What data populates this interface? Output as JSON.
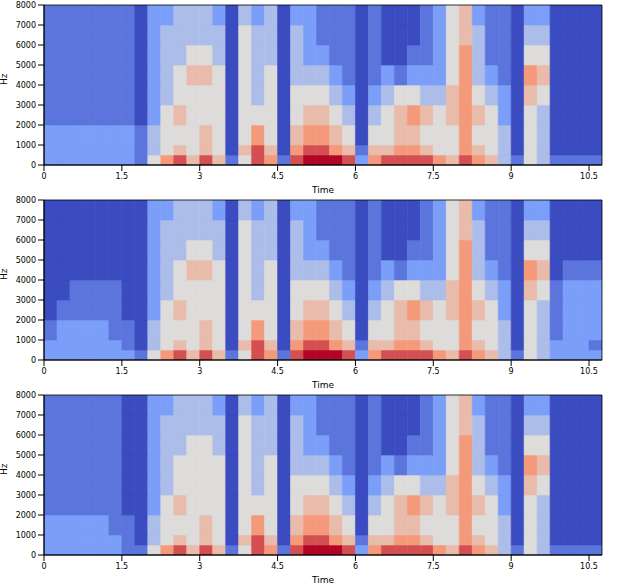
{
  "chart_data": [
    {
      "type": "heatmap",
      "xlabel": "Time",
      "ylabel": "Hz",
      "xlim": [
        0,
        10.75
      ],
      "ylim": [
        0,
        8000
      ],
      "xticks": [
        0,
        1.5,
        3,
        4.5,
        6,
        7.5,
        9,
        10.5
      ],
      "yticks": [
        0,
        1000,
        2000,
        3000,
        4000,
        5000,
        6000,
        7000,
        8000
      ],
      "x_edges": [
        0,
        0.25,
        0.5,
        0.75,
        1,
        1.25,
        1.5,
        1.75,
        2,
        2.25,
        2.5,
        2.75,
        3,
        3.25,
        3.5,
        3.75,
        4,
        4.25,
        4.5,
        4.75,
        5,
        5.25,
        5.5,
        5.75,
        6,
        6.25,
        6.5,
        6.75,
        7,
        7.25,
        7.5,
        7.75,
        8,
        8.25,
        8.5,
        8.75,
        9,
        9.25,
        9.5,
        9.75,
        10,
        10.25,
        10.5,
        10.75
      ],
      "y_edges": [
        0,
        500,
        1000,
        2000,
        3000,
        4000,
        5000,
        6000,
        7000,
        8000
      ],
      "cells": [
        [
          3,
          3,
          3,
          3,
          3,
          3,
          3,
          2,
          5,
          7,
          8,
          6,
          8,
          6,
          2,
          5,
          8,
          7,
          2,
          8,
          9,
          9,
          9,
          8,
          3,
          7,
          8,
          8,
          8,
          8,
          7,
          6,
          8,
          7,
          6,
          4,
          2,
          5,
          4,
          2,
          2,
          2,
          2
        ],
        [
          3,
          3,
          3,
          3,
          3,
          3,
          3,
          2,
          4,
          5,
          6,
          5,
          6,
          5,
          1,
          6,
          8,
          6,
          1,
          7,
          8,
          8,
          7,
          6,
          2,
          6,
          6,
          7,
          7,
          6,
          5,
          5,
          7,
          6,
          5,
          4,
          1,
          5,
          4,
          1,
          1,
          1,
          1
        ],
        [
          3,
          3,
          3,
          3,
          3,
          3,
          3,
          2,
          4,
          5,
          5,
          5,
          6,
          5,
          1,
          5,
          7,
          5,
          1,
          6,
          7,
          7,
          6,
          5,
          1,
          5,
          5,
          6,
          6,
          5,
          5,
          5,
          7,
          5,
          5,
          4,
          1,
          5,
          4,
          1,
          1,
          1,
          1
        ],
        [
          2,
          2,
          2,
          2,
          2,
          2,
          2,
          1,
          3,
          5,
          6,
          5,
          5,
          5,
          1,
          5,
          5,
          5,
          1,
          5,
          6,
          6,
          5,
          4,
          1,
          4,
          5,
          6,
          7,
          6,
          5,
          6,
          7,
          6,
          5,
          3,
          1,
          5,
          4,
          1,
          1,
          1,
          1
        ],
        [
          2,
          2,
          2,
          2,
          2,
          2,
          2,
          1,
          3,
          4,
          5,
          5,
          5,
          5,
          1,
          5,
          4,
          5,
          1,
          5,
          5,
          5,
          4,
          3,
          1,
          3,
          4,
          5,
          5,
          4,
          4,
          6,
          7,
          5,
          4,
          3,
          1,
          6,
          5,
          1,
          1,
          1,
          1
        ],
        [
          2,
          2,
          2,
          2,
          2,
          2,
          2,
          1,
          3,
          4,
          5,
          6,
          6,
          5,
          1,
          5,
          4,
          5,
          1,
          4,
          4,
          4,
          3,
          2,
          1,
          2,
          3,
          2,
          3,
          3,
          3,
          5,
          7,
          4,
          3,
          2,
          1,
          7,
          6,
          1,
          1,
          1,
          1
        ],
        [
          2,
          2,
          2,
          2,
          2,
          2,
          2,
          1,
          3,
          4,
          4,
          5,
          5,
          4,
          1,
          5,
          4,
          4,
          1,
          4,
          3,
          3,
          2,
          2,
          1,
          2,
          1,
          1,
          2,
          2,
          3,
          5,
          7,
          4,
          2,
          2,
          1,
          5,
          5,
          1,
          1,
          1,
          1
        ],
        [
          2,
          2,
          2,
          2,
          2,
          2,
          2,
          1,
          3,
          4,
          4,
          4,
          4,
          4,
          1,
          5,
          4,
          4,
          1,
          4,
          3,
          2,
          2,
          2,
          1,
          2,
          1,
          1,
          1,
          2,
          3,
          5,
          6,
          4,
          2,
          2,
          1,
          4,
          4,
          1,
          1,
          1,
          1
        ],
        [
          2,
          2,
          2,
          2,
          2,
          2,
          2,
          1,
          3,
          3,
          4,
          4,
          4,
          3,
          1,
          4,
          3,
          4,
          1,
          3,
          3,
          2,
          2,
          2,
          1,
          2,
          1,
          1,
          1,
          2,
          3,
          5,
          6,
          3,
          2,
          2,
          1,
          3,
          3,
          1,
          1,
          1,
          1
        ]
      ]
    },
    {
      "type": "heatmap",
      "xlabel": "Time",
      "ylabel": "Hz",
      "xlim": [
        0,
        10.75
      ],
      "ylim": [
        0,
        8000
      ],
      "xticks": [
        0,
        1.5,
        3,
        4.5,
        6,
        7.5,
        9,
        10.5
      ],
      "yticks": [
        0,
        1000,
        2000,
        3000,
        4000,
        5000,
        6000,
        7000,
        8000
      ],
      "x_edges": [
        0,
        0.25,
        0.5,
        0.75,
        1,
        1.25,
        1.5,
        1.75,
        2,
        2.25,
        2.5,
        2.75,
        3,
        3.25,
        3.5,
        3.75,
        4,
        4.25,
        4.5,
        4.75,
        5,
        5.25,
        5.5,
        5.75,
        6,
        6.25,
        6.5,
        6.75,
        7,
        7.25,
        7.5,
        7.75,
        8,
        8.25,
        8.5,
        8.75,
        9,
        9.25,
        9.5,
        9.75,
        10,
        10.25,
        10.5,
        10.75
      ],
      "y_edges": [
        0,
        500,
        1000,
        2000,
        3000,
        4000,
        5000,
        6000,
        7000,
        8000
      ],
      "cells": [
        [
          3,
          3,
          3,
          3,
          3,
          3,
          3,
          2,
          5,
          7,
          8,
          6,
          8,
          6,
          2,
          5,
          8,
          7,
          2,
          8,
          9,
          9,
          9,
          8,
          3,
          7,
          8,
          8,
          8,
          8,
          7,
          6,
          8,
          7,
          6,
          4,
          2,
          5,
          4,
          3,
          3,
          3,
          3
        ],
        [
          3,
          3,
          3,
          3,
          3,
          3,
          2,
          1,
          4,
          5,
          6,
          5,
          6,
          5,
          1,
          6,
          8,
          6,
          1,
          7,
          8,
          8,
          7,
          6,
          2,
          6,
          6,
          7,
          7,
          6,
          5,
          5,
          7,
          6,
          5,
          4,
          1,
          5,
          4,
          3,
          3,
          3,
          2
        ],
        [
          2,
          3,
          3,
          3,
          3,
          2,
          2,
          1,
          4,
          5,
          5,
          5,
          6,
          5,
          1,
          5,
          7,
          5,
          1,
          6,
          7,
          7,
          6,
          5,
          1,
          5,
          5,
          6,
          6,
          5,
          5,
          5,
          7,
          5,
          5,
          4,
          1,
          5,
          4,
          2,
          3,
          3,
          3
        ],
        [
          1,
          2,
          2,
          2,
          2,
          2,
          1,
          1,
          3,
          5,
          6,
          5,
          5,
          5,
          1,
          5,
          5,
          5,
          1,
          5,
          6,
          6,
          5,
          4,
          1,
          4,
          5,
          6,
          7,
          6,
          5,
          6,
          7,
          6,
          5,
          3,
          1,
          5,
          4,
          2,
          3,
          3,
          3
        ],
        [
          1,
          1,
          2,
          2,
          2,
          2,
          1,
          1,
          3,
          4,
          5,
          5,
          5,
          5,
          1,
          5,
          4,
          5,
          1,
          5,
          5,
          5,
          4,
          3,
          1,
          3,
          4,
          5,
          5,
          4,
          4,
          6,
          7,
          5,
          4,
          3,
          1,
          6,
          5,
          2,
          3,
          3,
          3
        ],
        [
          1,
          1,
          1,
          1,
          1,
          1,
          1,
          1,
          3,
          4,
          5,
          6,
          6,
          5,
          1,
          5,
          4,
          5,
          1,
          4,
          4,
          4,
          3,
          2,
          1,
          2,
          3,
          2,
          3,
          3,
          3,
          5,
          7,
          4,
          3,
          2,
          1,
          7,
          6,
          1,
          2,
          2,
          2
        ],
        [
          1,
          1,
          1,
          1,
          1,
          1,
          1,
          1,
          3,
          4,
          4,
          5,
          5,
          4,
          1,
          5,
          4,
          4,
          1,
          4,
          3,
          3,
          2,
          2,
          1,
          2,
          1,
          1,
          2,
          2,
          3,
          5,
          7,
          4,
          2,
          2,
          1,
          5,
          5,
          1,
          1,
          1,
          1
        ],
        [
          1,
          1,
          1,
          1,
          1,
          1,
          1,
          1,
          3,
          4,
          4,
          4,
          4,
          4,
          1,
          5,
          4,
          4,
          1,
          4,
          3,
          2,
          2,
          2,
          1,
          2,
          1,
          1,
          1,
          2,
          3,
          5,
          6,
          4,
          2,
          2,
          1,
          4,
          4,
          1,
          1,
          1,
          1
        ],
        [
          1,
          1,
          1,
          1,
          1,
          1,
          1,
          1,
          3,
          3,
          4,
          4,
          4,
          3,
          1,
          4,
          3,
          4,
          1,
          3,
          3,
          2,
          2,
          2,
          1,
          2,
          1,
          1,
          1,
          2,
          3,
          5,
          6,
          3,
          2,
          2,
          1,
          3,
          3,
          1,
          1,
          1,
          1
        ]
      ]
    },
    {
      "type": "heatmap",
      "xlabel": "Time",
      "ylabel": "Hz",
      "xlim": [
        0,
        10.75
      ],
      "ylim": [
        0,
        8000
      ],
      "xticks": [
        0,
        1.5,
        3,
        4.5,
        6,
        7.5,
        9,
        10.5
      ],
      "yticks": [
        0,
        1000,
        2000,
        3000,
        4000,
        5000,
        6000,
        7000,
        8000
      ],
      "x_edges": [
        0,
        0.25,
        0.5,
        0.75,
        1,
        1.25,
        1.5,
        1.75,
        2,
        2.25,
        2.5,
        2.75,
        3,
        3.25,
        3.5,
        3.75,
        4,
        4.25,
        4.5,
        4.75,
        5,
        5.25,
        5.5,
        5.75,
        6,
        6.25,
        6.5,
        6.75,
        7,
        7.25,
        7.5,
        7.75,
        8,
        8.25,
        8.5,
        8.75,
        9,
        9.25,
        9.5,
        9.75,
        10,
        10.25,
        10.5,
        10.75
      ],
      "y_edges": [
        0,
        500,
        1000,
        2000,
        3000,
        4000,
        5000,
        6000,
        7000,
        8000
      ],
      "cells": [
        [
          3,
          3,
          3,
          3,
          3,
          3,
          2,
          2,
          5,
          7,
          8,
          6,
          8,
          6,
          2,
          5,
          8,
          7,
          2,
          8,
          9,
          9,
          9,
          8,
          3,
          7,
          8,
          8,
          8,
          8,
          7,
          6,
          8,
          7,
          6,
          4,
          2,
          5,
          4,
          2,
          2,
          2,
          2
        ],
        [
          3,
          3,
          3,
          3,
          3,
          3,
          2,
          1,
          4,
          5,
          6,
          5,
          6,
          5,
          1,
          6,
          8,
          6,
          1,
          7,
          8,
          8,
          7,
          6,
          2,
          6,
          6,
          7,
          7,
          6,
          5,
          5,
          7,
          6,
          5,
          4,
          1,
          5,
          4,
          1,
          1,
          1,
          1
        ],
        [
          3,
          3,
          3,
          3,
          3,
          2,
          2,
          1,
          4,
          5,
          5,
          5,
          6,
          5,
          1,
          5,
          7,
          5,
          1,
          6,
          7,
          7,
          6,
          5,
          1,
          5,
          5,
          6,
          6,
          5,
          5,
          5,
          7,
          5,
          5,
          4,
          1,
          5,
          4,
          1,
          1,
          1,
          1
        ],
        [
          2,
          2,
          2,
          2,
          2,
          2,
          1,
          1,
          3,
          5,
          6,
          5,
          5,
          5,
          1,
          5,
          5,
          5,
          1,
          5,
          6,
          6,
          5,
          4,
          1,
          4,
          5,
          6,
          7,
          6,
          5,
          6,
          7,
          6,
          5,
          3,
          1,
          5,
          4,
          1,
          1,
          1,
          1
        ],
        [
          2,
          2,
          2,
          2,
          2,
          2,
          1,
          1,
          3,
          4,
          5,
          5,
          5,
          5,
          1,
          5,
          4,
          5,
          1,
          5,
          5,
          5,
          4,
          3,
          1,
          3,
          4,
          5,
          5,
          4,
          4,
          6,
          7,
          5,
          4,
          3,
          1,
          6,
          5,
          1,
          1,
          1,
          1
        ],
        [
          2,
          2,
          2,
          2,
          2,
          2,
          1,
          1,
          3,
          4,
          5,
          5,
          5,
          5,
          1,
          5,
          4,
          5,
          1,
          4,
          4,
          4,
          3,
          2,
          1,
          2,
          3,
          2,
          3,
          3,
          3,
          5,
          7,
          4,
          3,
          2,
          1,
          7,
          6,
          1,
          1,
          1,
          1
        ],
        [
          2,
          2,
          2,
          2,
          2,
          2,
          1,
          1,
          3,
          4,
          4,
          5,
          5,
          4,
          1,
          5,
          4,
          4,
          1,
          4,
          3,
          3,
          2,
          2,
          1,
          2,
          1,
          1,
          2,
          2,
          3,
          5,
          7,
          4,
          2,
          2,
          1,
          5,
          5,
          1,
          1,
          1,
          1
        ],
        [
          2,
          2,
          2,
          2,
          2,
          2,
          1,
          1,
          3,
          4,
          4,
          4,
          4,
          4,
          1,
          5,
          4,
          4,
          1,
          4,
          3,
          2,
          2,
          2,
          1,
          2,
          1,
          1,
          1,
          2,
          3,
          5,
          6,
          4,
          2,
          2,
          1,
          4,
          4,
          1,
          1,
          1,
          1
        ],
        [
          2,
          2,
          2,
          2,
          2,
          2,
          1,
          1,
          3,
          3,
          4,
          4,
          4,
          3,
          1,
          4,
          3,
          4,
          1,
          3,
          3,
          2,
          2,
          2,
          1,
          2,
          1,
          1,
          1,
          2,
          3,
          5,
          6,
          3,
          2,
          2,
          1,
          3,
          3,
          1,
          1,
          1,
          1
        ]
      ]
    }
  ]
}
